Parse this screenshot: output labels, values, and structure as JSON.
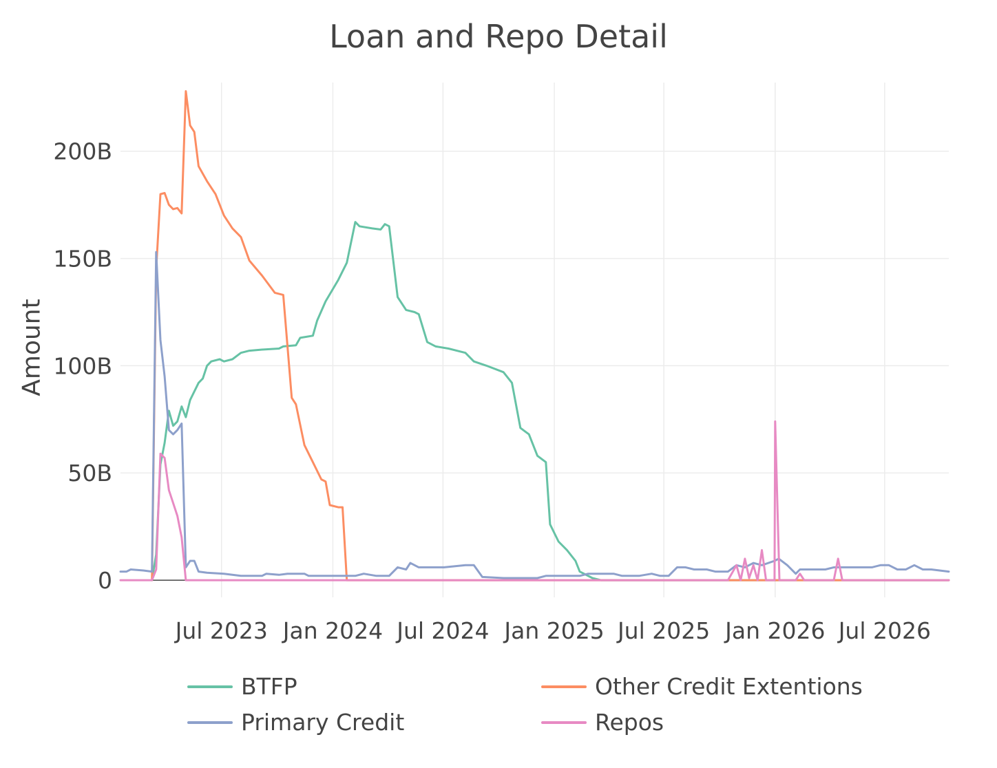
{
  "chart_data": {
    "type": "line",
    "title": "Loan and Repo Detail",
    "xlabel": "",
    "ylabel": "Amount",
    "x_range": [
      "2023-01-15",
      "2026-10-15"
    ],
    "y_range": [
      -8,
      232
    ],
    "y_ticks": [
      {
        "value": 0,
        "label": "0"
      },
      {
        "value": 50,
        "label": "50B"
      },
      {
        "value": 100,
        "label": "100B"
      },
      {
        "value": 150,
        "label": "150B"
      },
      {
        "value": 200,
        "label": "200B"
      }
    ],
    "x_ticks": [
      {
        "date": "2023-07-01",
        "label": "Jul 2023"
      },
      {
        "date": "2024-01-01",
        "label": "Jan 2024"
      },
      {
        "date": "2024-07-01",
        "label": "Jul 2024"
      },
      {
        "date": "2025-01-01",
        "label": "Jan 2025"
      },
      {
        "date": "2025-07-01",
        "label": "Jul 2025"
      },
      {
        "date": "2026-01-01",
        "label": "Jan 2026"
      },
      {
        "date": "2026-07-01",
        "label": "Jul 2026"
      }
    ],
    "grid": true,
    "legend_position": "bottom",
    "series": [
      {
        "name": "BTFP",
        "color": "#66c2a5",
        "points": [
          [
            "2023-03-08",
            0
          ],
          [
            "2023-03-15",
            12
          ],
          [
            "2023-03-22",
            54
          ],
          [
            "2023-03-29",
            64
          ],
          [
            "2023-04-05",
            79
          ],
          [
            "2023-04-12",
            72
          ],
          [
            "2023-04-19",
            74
          ],
          [
            "2023-04-26",
            81
          ],
          [
            "2023-05-03",
            76
          ],
          [
            "2023-05-10",
            84
          ],
          [
            "2023-05-24",
            92
          ],
          [
            "2023-05-31",
            94
          ],
          [
            "2023-06-07",
            100
          ],
          [
            "2023-06-14",
            102
          ],
          [
            "2023-06-28",
            103
          ],
          [
            "2023-07-05",
            102
          ],
          [
            "2023-07-19",
            103
          ],
          [
            "2023-08-02",
            106
          ],
          [
            "2023-08-16",
            107
          ],
          [
            "2023-09-06",
            107.5
          ],
          [
            "2023-10-04",
            108
          ],
          [
            "2023-10-11",
            109
          ],
          [
            "2023-11-01",
            109.5
          ],
          [
            "2023-11-08",
            113
          ],
          [
            "2023-11-29",
            114
          ],
          [
            "2023-12-06",
            121
          ],
          [
            "2023-12-20",
            130
          ],
          [
            "2024-01-10",
            140
          ],
          [
            "2024-01-24",
            148
          ],
          [
            "2024-02-07",
            167
          ],
          [
            "2024-02-14",
            165
          ],
          [
            "2024-03-06",
            164
          ],
          [
            "2024-03-20",
            163.5
          ],
          [
            "2024-03-27",
            166
          ],
          [
            "2024-04-03",
            165
          ],
          [
            "2024-04-17",
            132
          ],
          [
            "2024-05-01",
            126
          ],
          [
            "2024-05-15",
            125
          ],
          [
            "2024-05-22",
            124
          ],
          [
            "2024-06-05",
            111
          ],
          [
            "2024-06-19",
            109
          ],
          [
            "2024-07-10",
            108
          ],
          [
            "2024-08-07",
            106
          ],
          [
            "2024-08-21",
            102
          ],
          [
            "2024-09-11",
            100
          ],
          [
            "2024-10-09",
            97
          ],
          [
            "2024-10-23",
            92
          ],
          [
            "2024-11-06",
            71
          ],
          [
            "2024-11-20",
            68
          ],
          [
            "2024-12-04",
            58
          ],
          [
            "2024-12-18",
            55
          ],
          [
            "2024-12-25",
            26
          ],
          [
            "2025-01-08",
            18
          ],
          [
            "2025-01-22",
            14
          ],
          [
            "2025-02-05",
            9
          ],
          [
            "2025-02-12",
            4
          ],
          [
            "2025-03-05",
            1
          ],
          [
            "2025-03-19",
            0
          ],
          [
            "2025-06-01",
            0
          ],
          [
            "2026-10-15",
            0
          ]
        ]
      },
      {
        "name": "Other Credit Extentions",
        "color": "#fc8d62",
        "points": [
          [
            "2023-03-08",
            0
          ],
          [
            "2023-03-15",
            145
          ],
          [
            "2023-03-22",
            180
          ],
          [
            "2023-03-29",
            180.5
          ],
          [
            "2023-04-05",
            175
          ],
          [
            "2023-04-12",
            173
          ],
          [
            "2023-04-19",
            173.5
          ],
          [
            "2023-04-26",
            171
          ],
          [
            "2023-05-03",
            228
          ],
          [
            "2023-05-10",
            212
          ],
          [
            "2023-05-17",
            209
          ],
          [
            "2023-05-24",
            193
          ],
          [
            "2023-06-07",
            186
          ],
          [
            "2023-06-21",
            180
          ],
          [
            "2023-07-05",
            170
          ],
          [
            "2023-07-19",
            164
          ],
          [
            "2023-08-02",
            160
          ],
          [
            "2023-08-16",
            149
          ],
          [
            "2023-09-06",
            142
          ],
          [
            "2023-09-27",
            134
          ],
          [
            "2023-10-11",
            133
          ],
          [
            "2023-10-25",
            85
          ],
          [
            "2023-11-01",
            82
          ],
          [
            "2023-11-15",
            63
          ],
          [
            "2023-11-29",
            55
          ],
          [
            "2023-12-13",
            47
          ],
          [
            "2023-12-20",
            46
          ],
          [
            "2023-12-27",
            35
          ],
          [
            "2024-01-10",
            34
          ],
          [
            "2024-01-17",
            34
          ],
          [
            "2024-01-24",
            0
          ],
          [
            "2026-10-15",
            0
          ]
        ]
      },
      {
        "name": "Primary Credit",
        "color": "#8da0cb",
        "points": [
          [
            "2023-01-15",
            4
          ],
          [
            "2023-01-25",
            4
          ],
          [
            "2023-02-01",
            5
          ],
          [
            "2023-02-22",
            4.5
          ],
          [
            "2023-03-08",
            4
          ],
          [
            "2023-03-15",
            153
          ],
          [
            "2023-03-22",
            112
          ],
          [
            "2023-03-29",
            95
          ],
          [
            "2023-04-05",
            70
          ],
          [
            "2023-04-12",
            68
          ],
          [
            "2023-04-19",
            70
          ],
          [
            "2023-04-26",
            73
          ],
          [
            "2023-05-03",
            6
          ],
          [
            "2023-05-10",
            9
          ],
          [
            "2023-05-17",
            9
          ],
          [
            "2023-05-24",
            4
          ],
          [
            "2023-06-07",
            3.5
          ],
          [
            "2023-07-05",
            3
          ],
          [
            "2023-08-02",
            2
          ],
          [
            "2023-09-06",
            2
          ],
          [
            "2023-09-13",
            3
          ],
          [
            "2023-10-04",
            2.5
          ],
          [
            "2023-10-18",
            3
          ],
          [
            "2023-11-15",
            3
          ],
          [
            "2023-11-22",
            2
          ],
          [
            "2024-02-07",
            2
          ],
          [
            "2024-02-21",
            3
          ],
          [
            "2024-03-13",
            2
          ],
          [
            "2024-04-03",
            2
          ],
          [
            "2024-04-17",
            6
          ],
          [
            "2024-05-01",
            5
          ],
          [
            "2024-05-08",
            8
          ],
          [
            "2024-05-22",
            6
          ],
          [
            "2024-06-19",
            6
          ],
          [
            "2024-07-03",
            6
          ],
          [
            "2024-08-07",
            7
          ],
          [
            "2024-08-21",
            7
          ],
          [
            "2024-09-04",
            1.5
          ],
          [
            "2024-10-09",
            1
          ],
          [
            "2024-12-04",
            1
          ],
          [
            "2024-12-18",
            2
          ],
          [
            "2025-01-22",
            2
          ],
          [
            "2025-02-12",
            2
          ],
          [
            "2025-02-26",
            3
          ],
          [
            "2025-04-09",
            3
          ],
          [
            "2025-04-23",
            2
          ],
          [
            "2025-05-21",
            2
          ],
          [
            "2025-06-11",
            3
          ],
          [
            "2025-06-25",
            2
          ],
          [
            "2025-07-09",
            2
          ],
          [
            "2025-07-16",
            4
          ],
          [
            "2025-07-23",
            6
          ],
          [
            "2025-08-06",
            6
          ],
          [
            "2025-08-20",
            5
          ],
          [
            "2025-09-10",
            5
          ],
          [
            "2025-09-24",
            4
          ],
          [
            "2025-10-15",
            4
          ],
          [
            "2025-10-29",
            7
          ],
          [
            "2025-11-12",
            6
          ],
          [
            "2025-11-26",
            8
          ],
          [
            "2025-12-10",
            7
          ],
          [
            "2025-12-31",
            9
          ],
          [
            "2026-01-07",
            10
          ],
          [
            "2026-01-21",
            7
          ],
          [
            "2026-02-04",
            3
          ],
          [
            "2026-02-11",
            5
          ],
          [
            "2026-03-04",
            5
          ],
          [
            "2026-03-25",
            5
          ],
          [
            "2026-04-08",
            6
          ],
          [
            "2026-05-13",
            6
          ],
          [
            "2026-06-10",
            6
          ],
          [
            "2026-06-24",
            7
          ],
          [
            "2026-07-08",
            7
          ],
          [
            "2026-07-22",
            5
          ],
          [
            "2026-08-05",
            5
          ],
          [
            "2026-08-19",
            7
          ],
          [
            "2026-09-02",
            5
          ],
          [
            "2026-09-16",
            5
          ],
          [
            "2026-10-15",
            4
          ]
        ]
      },
      {
        "name": "Repos",
        "color": "#e78ac3",
        "points": [
          [
            "2023-01-15",
            0
          ],
          [
            "2023-03-08",
            0
          ],
          [
            "2023-03-15",
            5
          ],
          [
            "2023-03-22",
            59
          ],
          [
            "2023-03-29",
            57
          ],
          [
            "2023-04-05",
            42
          ],
          [
            "2023-04-19",
            30
          ],
          [
            "2023-04-26",
            20
          ],
          [
            "2023-05-03",
            0
          ],
          [
            "2025-10-15",
            0
          ],
          [
            "2025-10-29",
            7
          ],
          [
            "2025-11-05",
            0
          ],
          [
            "2025-11-12",
            10
          ],
          [
            "2025-11-19",
            1
          ],
          [
            "2025-11-26",
            7
          ],
          [
            "2025-12-03",
            0
          ],
          [
            "2025-12-10",
            14
          ],
          [
            "2025-12-17",
            0
          ],
          [
            "2025-12-31",
            0
          ],
          [
            "2026-01-01",
            74
          ],
          [
            "2026-01-08",
            0
          ],
          [
            "2026-02-04",
            0
          ],
          [
            "2026-02-11",
            3
          ],
          [
            "2026-02-18",
            0
          ],
          [
            "2026-04-08",
            0
          ],
          [
            "2026-04-15",
            10
          ],
          [
            "2026-04-22",
            0
          ],
          [
            "2026-10-15",
            0
          ]
        ]
      }
    ]
  }
}
